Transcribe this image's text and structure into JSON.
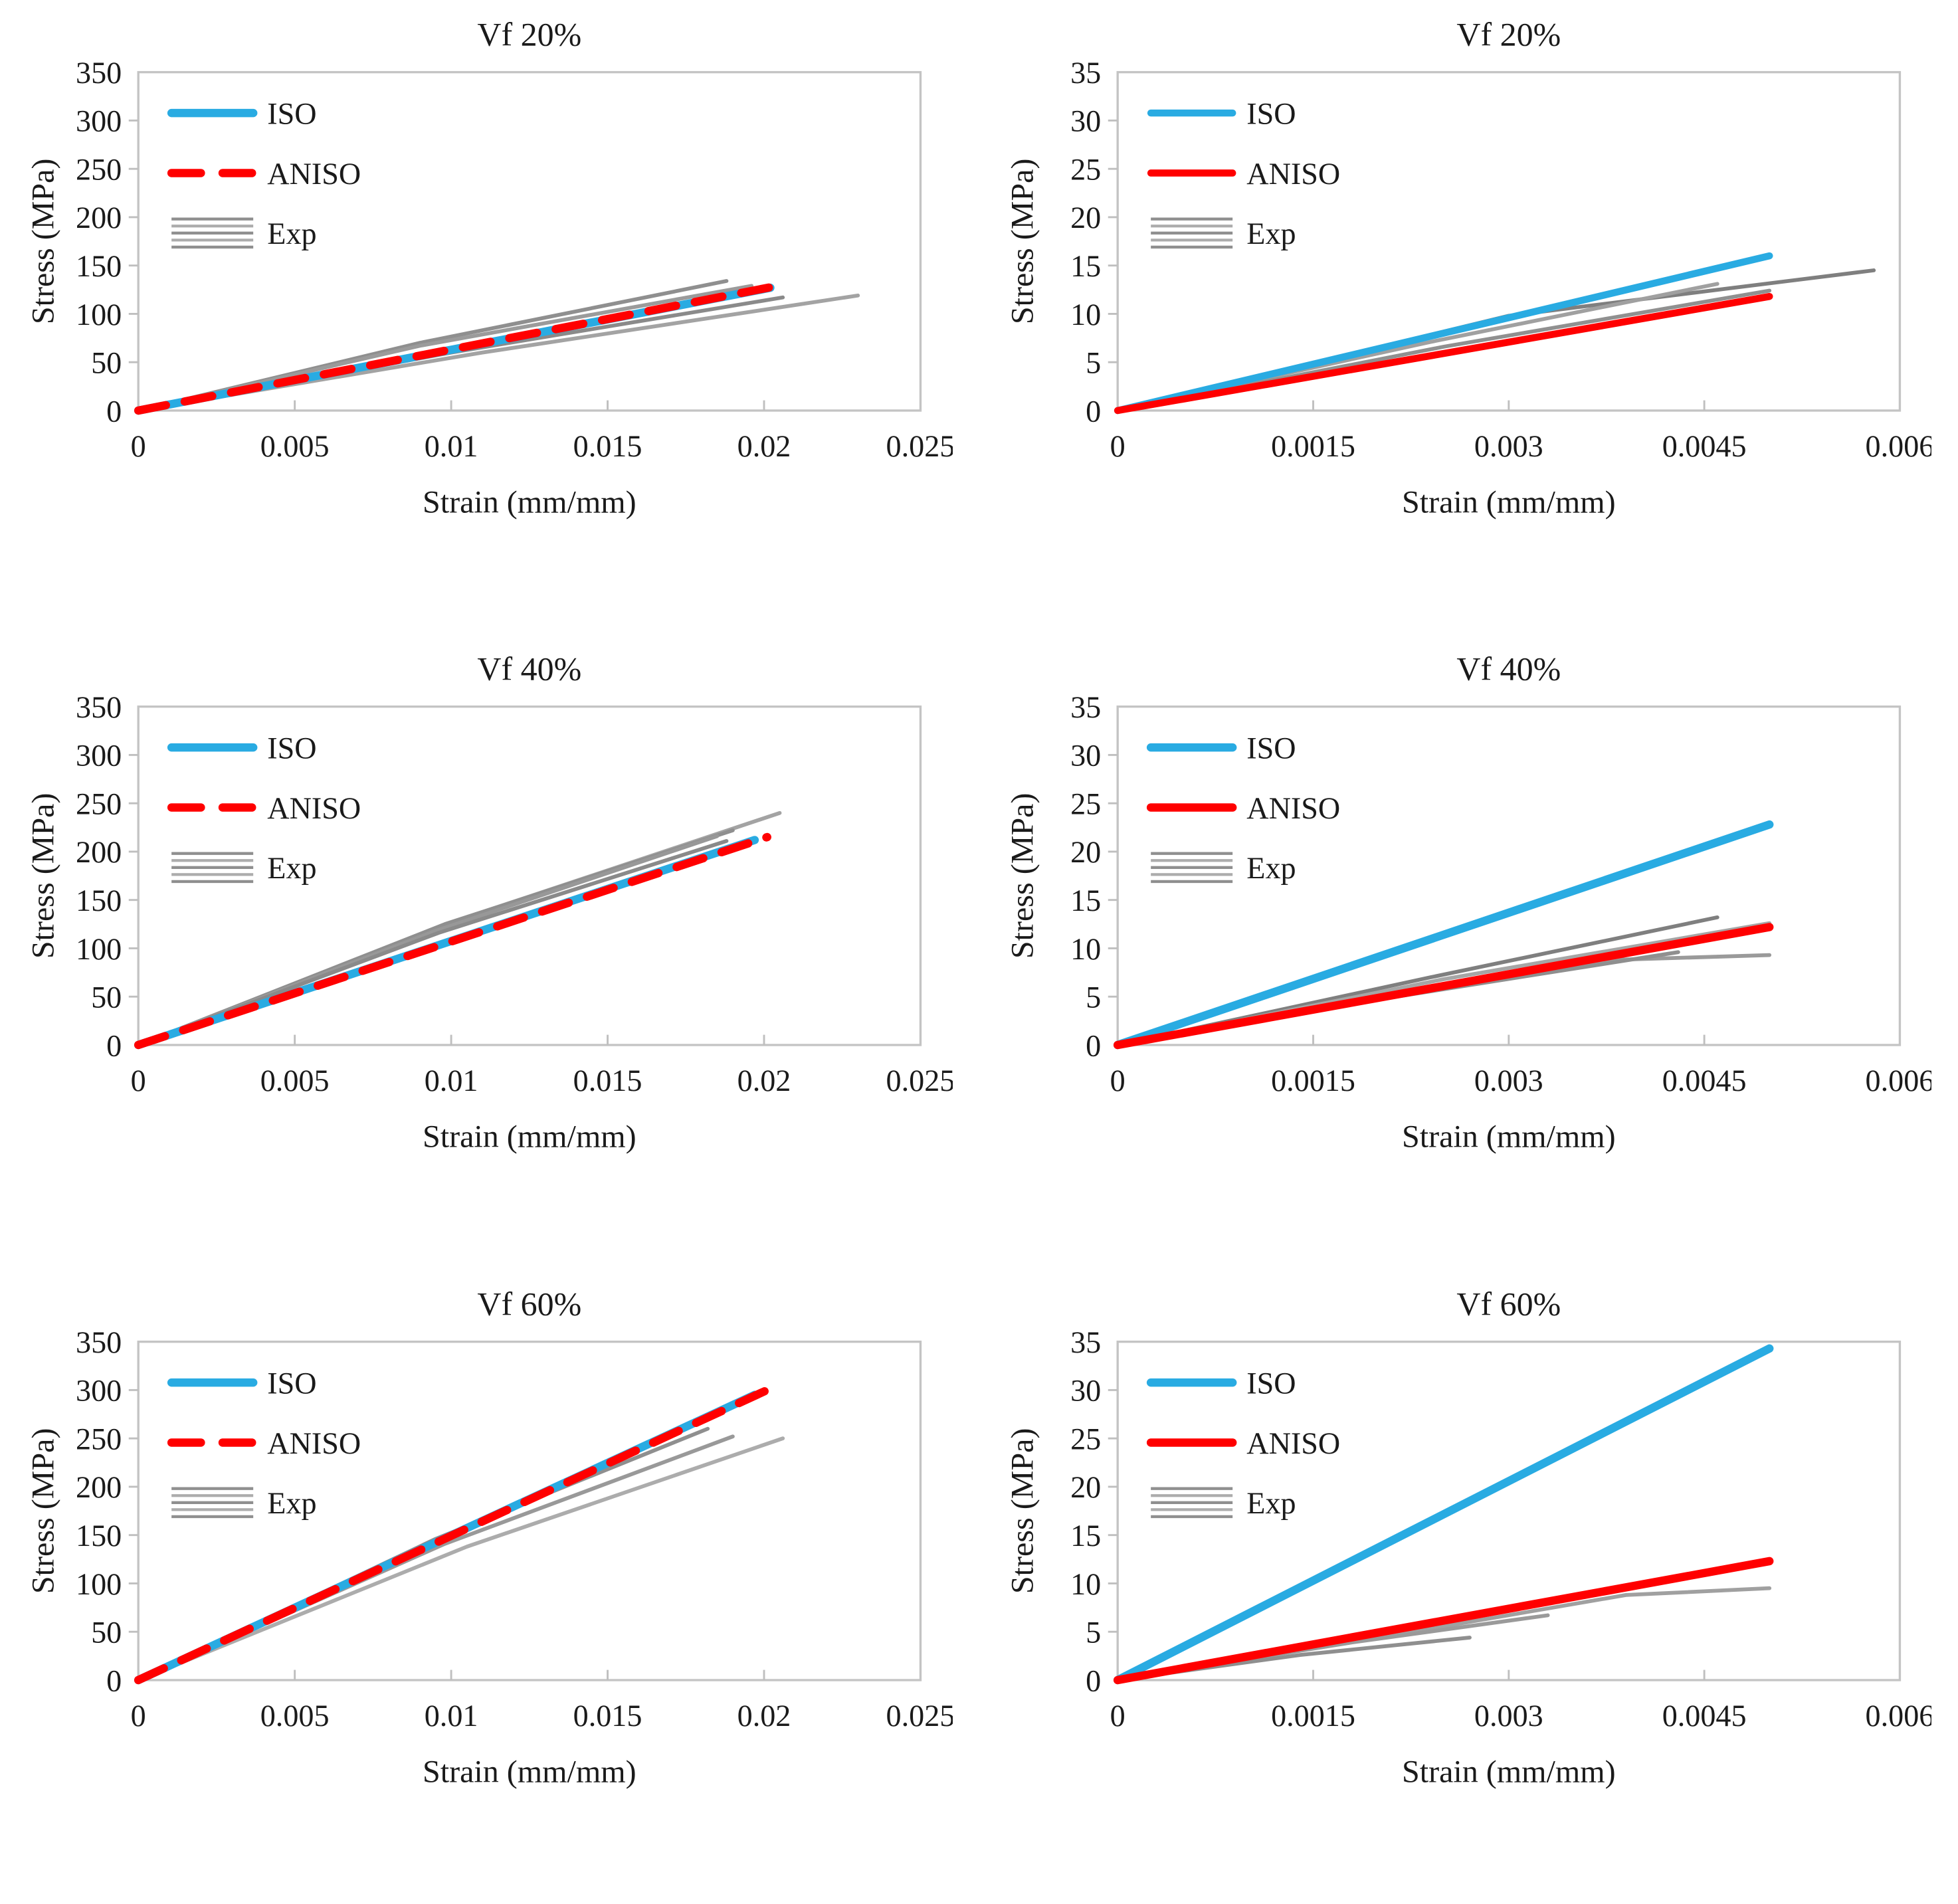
{
  "figure_title": "",
  "palette": {
    "iso_blue": "#29ABE2",
    "aniso_red": "#FF0000",
    "axis_gray": "#C4C4C4",
    "tick_gray": "#BFBFBF",
    "text_dark": "#1A1A1A",
    "exp_gray_dark": "#8F8F8F",
    "exp_gray_light": "#ACACAC"
  },
  "axis_labels": {
    "x": "Strain (mm/mm)",
    "y": "Stress (MPa)"
  },
  "legend_labels": {
    "iso": "ISO",
    "aniso": "ANISO",
    "exp": "Exp"
  },
  "chart_data": [
    {
      "type": "line",
      "title": "Vf 20%",
      "xlabel": "Strain (mm/mm)",
      "ylabel": "Stress (MPa)",
      "xlim": [
        0,
        0.025
      ],
      "ylim": [
        0,
        350
      ],
      "xticks": {
        "values": [
          0,
          0.005,
          0.01,
          0.015,
          0.02,
          0.025
        ],
        "labels": [
          "0",
          "0.005",
          "0.01",
          "0.015",
          "0.02",
          "0.025"
        ]
      },
      "yticks": {
        "values": [
          0,
          50,
          100,
          150,
          200,
          250,
          300,
          350
        ],
        "labels": [
          "0",
          "50",
          "100",
          "150",
          "200",
          "250",
          "300",
          "350"
        ]
      },
      "legend": {
        "position": "top-left",
        "entries": [
          {
            "label": "ISO",
            "style": "solid",
            "color": "#29ABE2",
            "width": 13
          },
          {
            "label": "ANISO",
            "style": "dash",
            "color": "#FF0000",
            "width": 13
          },
          {
            "label": "Exp",
            "style": "multiline",
            "color": "#8F8F8F"
          }
        ]
      },
      "series": [
        {
          "name": "Exp-1",
          "color": "#8F8F8F",
          "width": 6,
          "dash": null,
          "points": [
            [
              0,
              0
            ],
            [
              0.009,
              70
            ],
            [
              0.0188,
              134
            ]
          ]
        },
        {
          "name": "Exp-2",
          "color": "#9B9B9B",
          "width": 6,
          "dash": null,
          "points": [
            [
              0,
              0
            ],
            [
              0.009,
              67
            ],
            [
              0.0196,
              129
            ]
          ]
        },
        {
          "name": "Exp-3",
          "color": "#8A8A8A",
          "width": 6,
          "dash": null,
          "points": [
            [
              0,
              0
            ],
            [
              0.01,
              60
            ],
            [
              0.0206,
              117
            ]
          ]
        },
        {
          "name": "Exp-4",
          "color": "#A3A3A3",
          "width": 6,
          "dash": null,
          "points": [
            [
              0,
              0
            ],
            [
              0.011,
              60
            ],
            [
              0.023,
              119
            ]
          ]
        },
        {
          "name": "ISO",
          "color": "#29ABE2",
          "width": 13,
          "dash": null,
          "points": [
            [
              0,
              0
            ],
            [
              0.0202,
              127
            ]
          ]
        },
        {
          "name": "ANISO",
          "color": "#FF0000",
          "width": 13,
          "dash": [
            44,
            30
          ],
          "points": [
            [
              0,
              0
            ],
            [
              0.0206,
              130
            ]
          ]
        }
      ]
    },
    {
      "type": "line",
      "title": "Vf 20%",
      "xlabel": "Strain (mm/mm)",
      "ylabel": "Stress (MPa)",
      "xlim": [
        0,
        0.006
      ],
      "ylim": [
        0,
        35
      ],
      "xticks": {
        "values": [
          0,
          0.0015,
          0.003,
          0.0045,
          0.006
        ],
        "labels": [
          "0",
          "0.0015",
          "0.003",
          "0.0045",
          "0.006"
        ]
      },
      "yticks": {
        "values": [
          0,
          5,
          10,
          15,
          20,
          25,
          30,
          35
        ],
        "labels": [
          "0",
          "5",
          "10",
          "15",
          "20",
          "25",
          "30",
          "35"
        ]
      },
      "legend": {
        "position": "top-left",
        "entries": [
          {
            "label": "ISO",
            "style": "solid",
            "color": "#29ABE2",
            "width": 11
          },
          {
            "label": "ANISO",
            "style": "solid",
            "color": "#FF0000",
            "width": 11
          },
          {
            "label": "Exp",
            "style": "multiline",
            "color": "#8F8F8F"
          }
        ]
      },
      "series": [
        {
          "name": "Exp-1",
          "color": "#7F7F7F",
          "width": 6,
          "dash": null,
          "points": [
            [
              0,
              0
            ],
            [
              0.003,
              9.8
            ],
            [
              0.0058,
              14.5
            ]
          ]
        },
        {
          "name": "Exp-2",
          "color": "#A0A0A0",
          "width": 6,
          "dash": null,
          "points": [
            [
              0,
              0
            ],
            [
              0.0024,
              7.1
            ],
            [
              0.0046,
              13.1
            ]
          ]
        },
        {
          "name": "Exp-3",
          "color": "#909090",
          "width": 6,
          "dash": null,
          "points": [
            [
              0,
              0
            ],
            [
              0.0025,
              6.6
            ],
            [
              0.005,
              12.4
            ]
          ]
        },
        {
          "name": "ISO",
          "color": "#29ABE2",
          "width": 11,
          "dash": null,
          "points": [
            [
              0,
              0
            ],
            [
              0.005,
              16
            ]
          ]
        },
        {
          "name": "ANISO",
          "color": "#FF0000",
          "width": 11,
          "dash": null,
          "points": [
            [
              0,
              0
            ],
            [
              0.005,
              11.8
            ]
          ]
        }
      ]
    },
    {
      "type": "line",
      "title": "Vf 40%",
      "xlabel": "Strain (mm/mm)",
      "ylabel": "Stress (MPa)",
      "xlim": [
        0,
        0.025
      ],
      "ylim": [
        0,
        350
      ],
      "xticks": {
        "values": [
          0,
          0.005,
          0.01,
          0.015,
          0.02,
          0.025
        ],
        "labels": [
          "0",
          "0.005",
          "0.01",
          "0.015",
          "0.02",
          "0.025"
        ]
      },
      "yticks": {
        "values": [
          0,
          50,
          100,
          150,
          200,
          250,
          300,
          350
        ],
        "labels": [
          "0",
          "50",
          "100",
          "150",
          "200",
          "250",
          "300",
          "350"
        ]
      },
      "legend": {
        "position": "top-left",
        "entries": [
          {
            "label": "ISO",
            "style": "solid",
            "color": "#29ABE2",
            "width": 13
          },
          {
            "label": "ANISO",
            "style": "dash",
            "color": "#FF0000",
            "width": 13
          },
          {
            "label": "Exp",
            "style": "multiline",
            "color": "#8F8F8F"
          }
        ]
      },
      "series": [
        {
          "name": "Exp-1",
          "color": "#A3A3A3",
          "width": 6,
          "dash": null,
          "points": [
            [
              0,
              0
            ],
            [
              0.0105,
              132
            ],
            [
              0.0205,
              240
            ]
          ]
        },
        {
          "name": "Exp-2",
          "color": "#8F8F8F",
          "width": 6,
          "dash": null,
          "points": [
            [
              0,
              0
            ],
            [
              0.0098,
              125
            ],
            [
              0.019,
              222
            ]
          ]
        },
        {
          "name": "Exp-3",
          "color": "#989898",
          "width": 6,
          "dash": null,
          "points": [
            [
              0,
              0
            ],
            [
              0.0095,
              118
            ],
            [
              0.0185,
              216
            ]
          ]
        },
        {
          "name": "Exp-4",
          "color": "#8A8A8A",
          "width": 6,
          "dash": null,
          "points": [
            [
              0,
              0
            ],
            [
              0.0096,
              116
            ],
            [
              0.0188,
              211
            ]
          ]
        },
        {
          "name": "ISO",
          "color": "#29ABE2",
          "width": 13,
          "dash": null,
          "points": [
            [
              0,
              0
            ],
            [
              0.0197,
              212
            ]
          ]
        },
        {
          "name": "ANISO",
          "color": "#FF0000",
          "width": 13,
          "dash": [
            44,
            30
          ],
          "points": [
            [
              0,
              0
            ],
            [
              0.0201,
              215
            ]
          ]
        }
      ]
    },
    {
      "type": "line",
      "title": "Vf 40%",
      "xlabel": "Strain (mm/mm)",
      "ylabel": "Stress (MPa)",
      "xlim": [
        0,
        0.006
      ],
      "ylim": [
        0,
        35
      ],
      "xticks": {
        "values": [
          0,
          0.0015,
          0.003,
          0.0045,
          0.006
        ],
        "labels": [
          "0",
          "0.0015",
          "0.003",
          "0.0045",
          "0.006"
        ]
      },
      "yticks": {
        "values": [
          0,
          5,
          10,
          15,
          20,
          25,
          30,
          35
        ],
        "labels": [
          "0",
          "5",
          "10",
          "15",
          "20",
          "25",
          "30",
          "35"
        ]
      },
      "legend": {
        "position": "top-left",
        "entries": [
          {
            "label": "ISO",
            "style": "solid",
            "color": "#29ABE2",
            "width": 13
          },
          {
            "label": "ANISO",
            "style": "solid",
            "color": "#FF0000",
            "width": 13
          },
          {
            "label": "Exp",
            "style": "multiline",
            "color": "#8F8F8F"
          }
        ]
      },
      "series": [
        {
          "name": "Exp-1",
          "color": "#7F7F7F",
          "width": 6,
          "dash": null,
          "points": [
            [
              0,
              0
            ],
            [
              0.0024,
              7.0
            ],
            [
              0.0046,
              13.2
            ]
          ]
        },
        {
          "name": "Exp-2",
          "color": "#A6A6A6",
          "width": 6,
          "dash": null,
          "points": [
            [
              0,
              0
            ],
            [
              0.0025,
              6.8
            ],
            [
              0.005,
              12.6
            ]
          ]
        },
        {
          "name": "Exp-3",
          "color": "#9A9A9A",
          "width": 6,
          "dash": null,
          "points": [
            [
              0,
              0
            ],
            [
              0.002,
              4.8
            ],
            [
              0.0038,
              8.8
            ],
            [
              0.005,
              9.3
            ]
          ]
        },
        {
          "name": "Exp-4",
          "color": "#8F8F8F",
          "width": 6,
          "dash": null,
          "points": [
            [
              0,
              0
            ],
            [
              0.002,
              4.7
            ],
            [
              0.0043,
              9.6
            ]
          ]
        },
        {
          "name": "ISO",
          "color": "#29ABE2",
          "width": 13,
          "dash": null,
          "points": [
            [
              0,
              0
            ],
            [
              0.005,
              22.8
            ]
          ]
        },
        {
          "name": "ANISO",
          "color": "#FF0000",
          "width": 13,
          "dash": null,
          "points": [
            [
              0,
              0
            ],
            [
              0.005,
              12.2
            ]
          ]
        }
      ]
    },
    {
      "type": "line",
      "title": "Vf 60%",
      "xlabel": "Strain (mm/mm)",
      "ylabel": "Stress (MPa)",
      "xlim": [
        0,
        0.025
      ],
      "ylim": [
        0,
        350
      ],
      "xticks": {
        "values": [
          0,
          0.005,
          0.01,
          0.015,
          0.02,
          0.025
        ],
        "labels": [
          "0",
          "0.005",
          "0.01",
          "0.015",
          "0.02",
          "0.025"
        ]
      },
      "yticks": {
        "values": [
          0,
          50,
          100,
          150,
          200,
          250,
          300,
          350
        ],
        "labels": [
          "0",
          "50",
          "100",
          "150",
          "200",
          "250",
          "300",
          "350"
        ]
      },
      "legend": {
        "position": "top-left",
        "entries": [
          {
            "label": "ISO",
            "style": "solid",
            "color": "#29ABE2",
            "width": 13
          },
          {
            "label": "ANISO",
            "style": "dash",
            "color": "#FF0000",
            "width": 13
          },
          {
            "label": "Exp",
            "style": "multiline",
            "color": "#8F8F8F"
          }
        ]
      },
      "series": [
        {
          "name": "Exp-1",
          "color": "#8F8F8F",
          "width": 6,
          "dash": null,
          "points": [
            [
              0,
              0
            ],
            [
              0.0095,
              146
            ],
            [
              0.0182,
              260
            ]
          ]
        },
        {
          "name": "Exp-2",
          "color": "#999999",
          "width": 6,
          "dash": null,
          "points": [
            [
              0,
              0
            ],
            [
              0.0098,
              141
            ],
            [
              0.019,
              252
            ]
          ]
        },
        {
          "name": "Exp-3",
          "color": "#ACACAC",
          "width": 6,
          "dash": null,
          "points": [
            [
              0,
              0
            ],
            [
              0.0105,
              138
            ],
            [
              0.0206,
              250
            ]
          ]
        },
        {
          "name": "ISO",
          "color": "#29ABE2",
          "width": 13,
          "dash": null,
          "points": [
            [
              0,
              0
            ],
            [
              0.0197,
              295
            ]
          ]
        },
        {
          "name": "ANISO",
          "color": "#FF0000",
          "width": 13,
          "dash": [
            44,
            30
          ],
          "points": [
            [
              0,
              0
            ],
            [
              0.0201,
              300
            ]
          ]
        }
      ]
    },
    {
      "type": "line",
      "title": "Vf 60%",
      "xlabel": "Strain (mm/mm)",
      "ylabel": "Stress (MPa)",
      "xlim": [
        0,
        0.006
      ],
      "ylim": [
        0,
        35
      ],
      "xticks": {
        "values": [
          0,
          0.0015,
          0.003,
          0.0045,
          0.006
        ],
        "labels": [
          "0",
          "0.0015",
          "0.003",
          "0.0045",
          "0.006"
        ]
      },
      "yticks": {
        "values": [
          0,
          5,
          10,
          15,
          20,
          25,
          30,
          35
        ],
        "labels": [
          "0",
          "5",
          "10",
          "15",
          "20",
          "25",
          "30",
          "35"
        ]
      },
      "legend": {
        "position": "top-left",
        "entries": [
          {
            "label": "ISO",
            "style": "solid",
            "color": "#29ABE2",
            "width": 13
          },
          {
            "label": "ANISO",
            "style": "solid",
            "color": "#FF0000",
            "width": 13
          },
          {
            "label": "Exp",
            "style": "multiline",
            "color": "#8F8F8F"
          }
        ]
      },
      "series": [
        {
          "name": "Exp-1",
          "color": "#A0A0A0",
          "width": 6,
          "dash": null,
          "points": [
            [
              0,
              0
            ],
            [
              0.002,
              4.4
            ],
            [
              0.0039,
              8.8
            ],
            [
              0.005,
              9.5
            ]
          ]
        },
        {
          "name": "Exp-2",
          "color": "#9A9A9A",
          "width": 6,
          "dash": null,
          "points": [
            [
              0,
              0
            ],
            [
              0.0018,
              3.9
            ],
            [
              0.0033,
              6.7
            ]
          ]
        },
        {
          "name": "Exp-3",
          "color": "#8F8F8F",
          "width": 6,
          "dash": null,
          "points": [
            [
              0,
              0
            ],
            [
              0.0014,
              2.6
            ],
            [
              0.0027,
              4.4
            ]
          ]
        },
        {
          "name": "ISO",
          "color": "#29ABE2",
          "width": 13,
          "dash": null,
          "points": [
            [
              0,
              0
            ],
            [
              0.005,
              34.3
            ]
          ]
        },
        {
          "name": "ANISO",
          "color": "#FF0000",
          "width": 13,
          "dash": null,
          "points": [
            [
              0,
              0
            ],
            [
              0.005,
              12.3
            ]
          ]
        }
      ]
    }
  ]
}
